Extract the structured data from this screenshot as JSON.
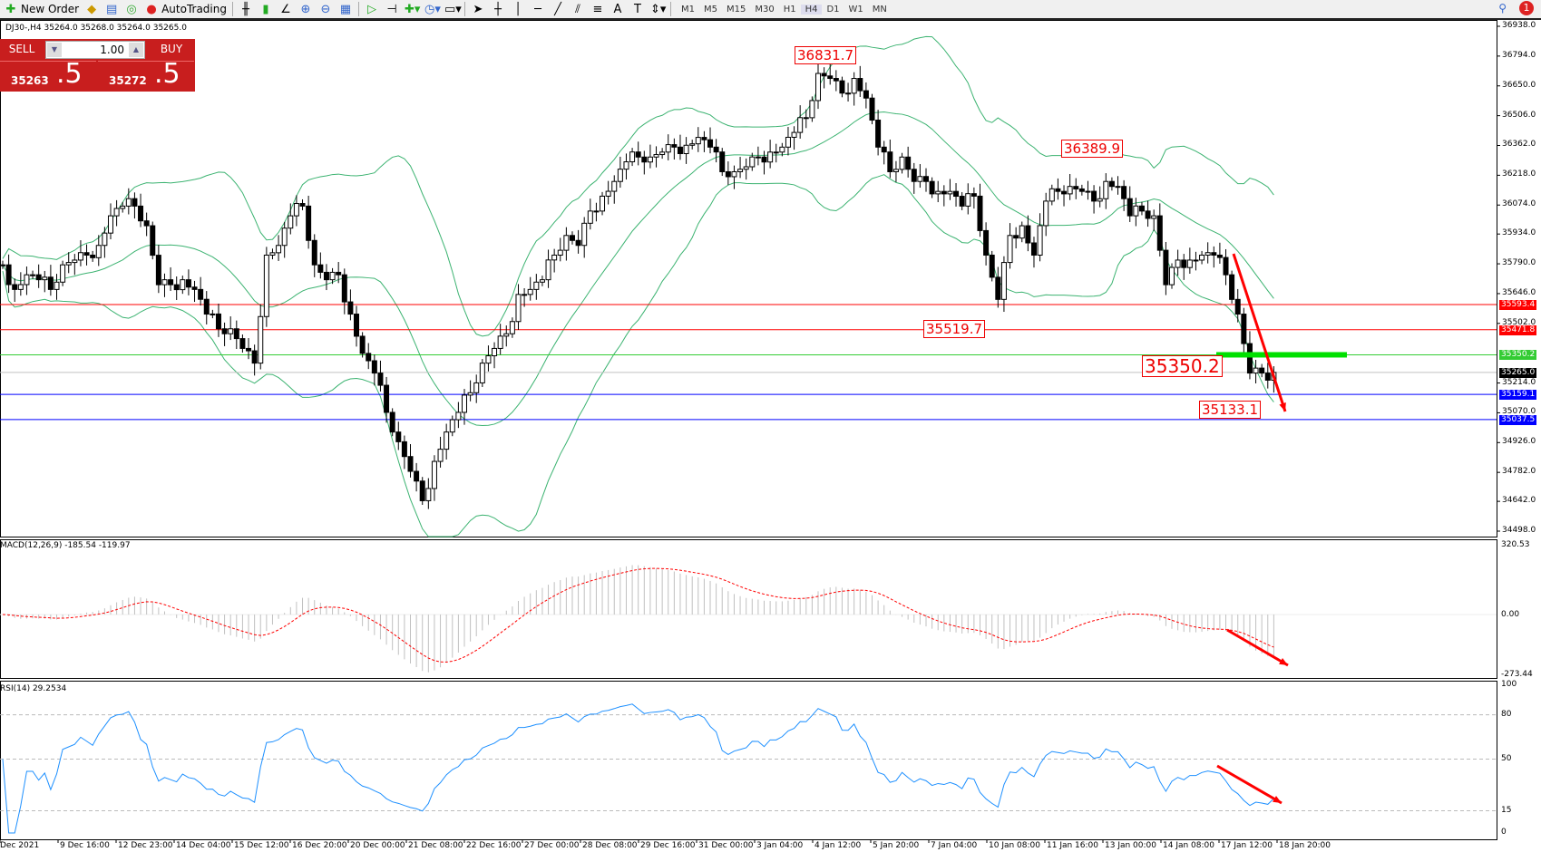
{
  "toolbar": {
    "new_order": "New Order",
    "autotrading": "AutoTrading",
    "timeframes": [
      "M1",
      "M5",
      "M15",
      "M30",
      "H1",
      "H4",
      "D1",
      "W1",
      "MN"
    ],
    "active_timeframe": "H4",
    "notifications": "1"
  },
  "symbol_info": "DJ30-,H4  35264.0 35268.0 35264.0 35265.0",
  "trade_panel": {
    "sell": "SELL",
    "buy": "BUY",
    "lots": "1.00",
    "sell_price_small": "35263",
    "sell_price_big": ".5",
    "buy_price_small": "35272",
    "buy_price_big": ".5"
  },
  "price_axis": [
    "36938.0",
    "36794.0",
    "36650.0",
    "36506.0",
    "36362.0",
    "36218.0",
    "36074.0",
    "35934.0",
    "35790.0",
    "35646.0",
    "35502.0",
    "35214.0",
    "35070.0",
    "34926.0",
    "34782.0",
    "34642.0",
    "34498.0"
  ],
  "levels": [
    {
      "price": 35593.4,
      "label": "35593.4",
      "color": "#ff0000"
    },
    {
      "price": 35471.8,
      "label": "35471.8",
      "color": "#ff0000"
    },
    {
      "price": 35350.2,
      "label": "35350.2",
      "color": "#33cc33"
    },
    {
      "price": 35265.0,
      "label": "35265.0",
      "color": "#000000",
      "line": "#c0c0c0"
    },
    {
      "price": 35159.1,
      "label": "35159.1",
      "color": "#0000ff"
    },
    {
      "price": 35037.5,
      "label": "35037.5",
      "color": "#0000ff"
    }
  ],
  "annotations": [
    "36831.7",
    "36389.9",
    "35519.7",
    "35350.2",
    "35133.1"
  ],
  "macd": {
    "label": "MACD(12,26,9) -185.54 -119.97",
    "axis": [
      "320.53",
      "0.00",
      "-273.44"
    ]
  },
  "rsi": {
    "label": "RSI(14) 29.2534",
    "axis": [
      "100",
      "80",
      "50",
      "15",
      "0"
    ]
  },
  "time_axis": [
    "Dec 2021",
    "9 Dec 16:00",
    "12 Dec 23:00",
    "14 Dec 04:00",
    "15 Dec 12:00",
    "16 Dec 20:00",
    "20 Dec 00:00",
    "21 Dec 08:00",
    "22 Dec 16:00",
    "27 Dec 00:00",
    "28 Dec 08:00",
    "29 Dec 16:00",
    "31 Dec 00:00",
    "3 Jan 04:00",
    "4 Jan 12:00",
    "5 Jan 20:00",
    "7 Jan 04:00",
    "10 Jan 08:00",
    "11 Jan 16:00",
    "13 Jan 00:00",
    "14 Jan 08:00",
    "17 Jan 12:00",
    "18 Jan 20:00"
  ],
  "colors": {
    "bands": "#3cb371",
    "macd_signal": "#ff0000",
    "macd_hist": "#c0c0c0",
    "rsi": "#1e90ff",
    "arrow": "#ff0000",
    "support_bar": "#00e000"
  },
  "chart_data": {
    "type": "candlestick",
    "symbol": "DJ30-",
    "timeframe": "H4",
    "ylim": [
      34498,
      36938
    ],
    "closes": [
      35785,
      35666,
      35737,
      35713,
      35666,
      35785,
      35808,
      35832,
      35879,
      36022,
      36069,
      36069,
      35974,
      35689,
      35689,
      35713,
      35666,
      35547,
      35476,
      35476,
      35381,
      35310,
      35832,
      35879,
      36022,
      36069,
      35785,
      35713,
      35737,
      35547,
      35357,
      35262,
      35072,
      34930,
      34787,
      34645,
      34835,
      34977,
      35072,
      35167,
      35310,
      35381,
      35452,
      35642,
      35666,
      35713,
      35832,
      35927,
      35879,
      36045,
      36117,
      36188,
      36283,
      36306,
      36306,
      36330,
      36354,
      36363,
      36401,
      36354,
      36235,
      36235,
      36259,
      36306,
      36330,
      36354,
      36425,
      36496,
      36710,
      36686,
      36615,
      36686,
      36591,
      36354,
      36235,
      36306,
      36188,
      36188,
      36140,
      36140,
      36069,
      36117,
      35832,
      35618,
      35927,
      35974,
      35832,
      36093,
      36140,
      36164,
      36140,
      36093,
      36188,
      36164,
      36022,
      36045,
      36022,
      35689,
      35808,
      35808,
      35832,
      35832,
      35737,
      35547,
      35262,
      35262,
      35265
    ]
  }
}
